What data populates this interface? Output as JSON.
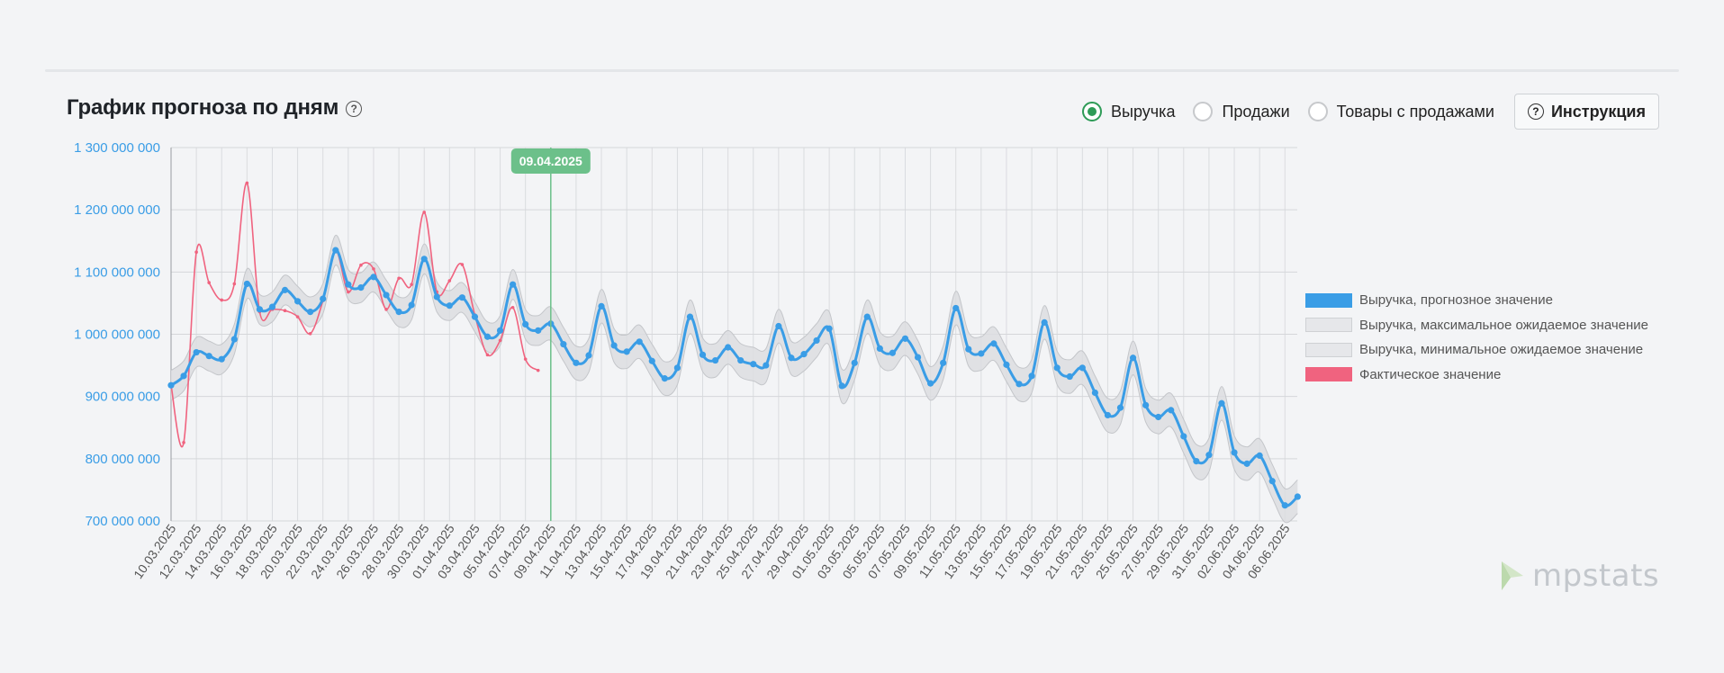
{
  "header": {
    "title": "График прогноза по дням",
    "instruction_label": "Инструкция"
  },
  "metric_options": [
    {
      "label": "Выручка",
      "checked": true
    },
    {
      "label": "Продажи",
      "checked": false
    },
    {
      "label": "Товары с продажами",
      "checked": false
    }
  ],
  "logo": {
    "text": "mpstats"
  },
  "chart_data": {
    "type": "line",
    "title": "График прогноза по дням",
    "xlabel": "",
    "ylabel": "",
    "ylim": [
      700000000,
      1300000000
    ],
    "ytick_values": [
      700000000,
      800000000,
      900000000,
      1000000000,
      1100000000,
      1200000000,
      1300000000
    ],
    "ytick_labels": [
      "700 000 000",
      "800 000 000",
      "900 000 000",
      "1 000 000 000",
      "1 100 000 000",
      "1 200 000 000",
      "1 300 000 000"
    ],
    "x_start": "10.03.2025",
    "xtick_labels": [
      "10.03.2025",
      "12.03.2025",
      "14.03.2025",
      "16.03.2025",
      "18.03.2025",
      "20.03.2025",
      "22.03.2025",
      "24.03.2025",
      "26.03.2025",
      "28.03.2025",
      "30.03.2025",
      "01.04.2025",
      "03.04.2025",
      "05.04.2025",
      "07.04.2025",
      "09.04.2025",
      "11.04.2025",
      "13.04.2025",
      "15.04.2025",
      "17.04.2025",
      "19.04.2025",
      "21.04.2025",
      "23.04.2025",
      "25.04.2025",
      "27.04.2025",
      "29.04.2025",
      "01.05.2025",
      "03.05.2025",
      "05.05.2025",
      "07.05.2025",
      "09.05.2025",
      "11.05.2025",
      "13.05.2025",
      "15.05.2025",
      "17.05.2025",
      "19.05.2025",
      "21.05.2025",
      "23.05.2025",
      "25.05.2025",
      "27.05.2025",
      "29.05.2025",
      "31.05.2025",
      "02.06.2025",
      "04.06.2025",
      "06.06.2025"
    ],
    "grid": true,
    "legend": "right",
    "marker": {
      "date": "09.04.2025",
      "label": "09.04.2025",
      "color": "#6cc08a"
    },
    "band_color": "#dcdde0",
    "band_stroke": "#c4c6ca",
    "series": [
      {
        "name": "Выручка, прогнозное значение",
        "color": "#3a9de6",
        "values": [
          918000000,
          933000000,
          971000000,
          965000000,
          960000000,
          992000000,
          1081000000,
          1040000000,
          1044000000,
          1071000000,
          1053000000,
          1036000000,
          1057000000,
          1135000000,
          1080000000,
          1075000000,
          1092000000,
          1063000000,
          1036000000,
          1047000000,
          1121000000,
          1060000000,
          1046000000,
          1059000000,
          1028000000,
          996000000,
          1006000000,
          1080000000,
          1016000000,
          1006000000,
          1017000000,
          984000000,
          954000000,
          966000000,
          1045000000,
          982000000,
          972000000,
          988000000,
          957000000,
          929000000,
          946000000,
          1028000000,
          967000000,
          958000000,
          979000000,
          958000000,
          952000000,
          950000000,
          1013000000,
          962000000,
          968000000,
          990000000,
          1009000000,
          917000000,
          954000000,
          1028000000,
          977000000,
          970000000,
          993000000,
          963000000,
          921000000,
          954000000,
          1042000000,
          976000000,
          969000000,
          985000000,
          951000000,
          920000000,
          933000000,
          1019000000,
          946000000,
          932000000,
          946000000,
          906000000,
          870000000,
          882000000,
          962000000,
          886000000,
          867000000,
          878000000,
          836000000,
          796000000,
          806000000,
          889000000,
          810000000,
          792000000,
          805000000,
          764000000,
          725000000,
          739000000
        ]
      },
      {
        "name": "Выручка, максимальное ожидаемое значение",
        "color": "#e6e7ea"
      },
      {
        "name": "Выручка, минимальное ожидаемое значение",
        "color": "#e6e7ea"
      },
      {
        "name": "Фактическое значение",
        "color": "#f0637f",
        "values": [
          918000000,
          826000000,
          1132000000,
          1083000000,
          1055000000,
          1081000000,
          1243000000,
          1036000000,
          1040000000,
          1038000000,
          1028000000,
          1001000000,
          1054000000,
          1134000000,
          1068000000,
          1111000000,
          1105000000,
          1040000000,
          1090000000,
          1080000000,
          1196000000,
          1068000000,
          1086000000,
          1112000000,
          1031000000,
          967000000,
          990000000,
          1043000000,
          960000000,
          942000000
        ]
      }
    ]
  }
}
